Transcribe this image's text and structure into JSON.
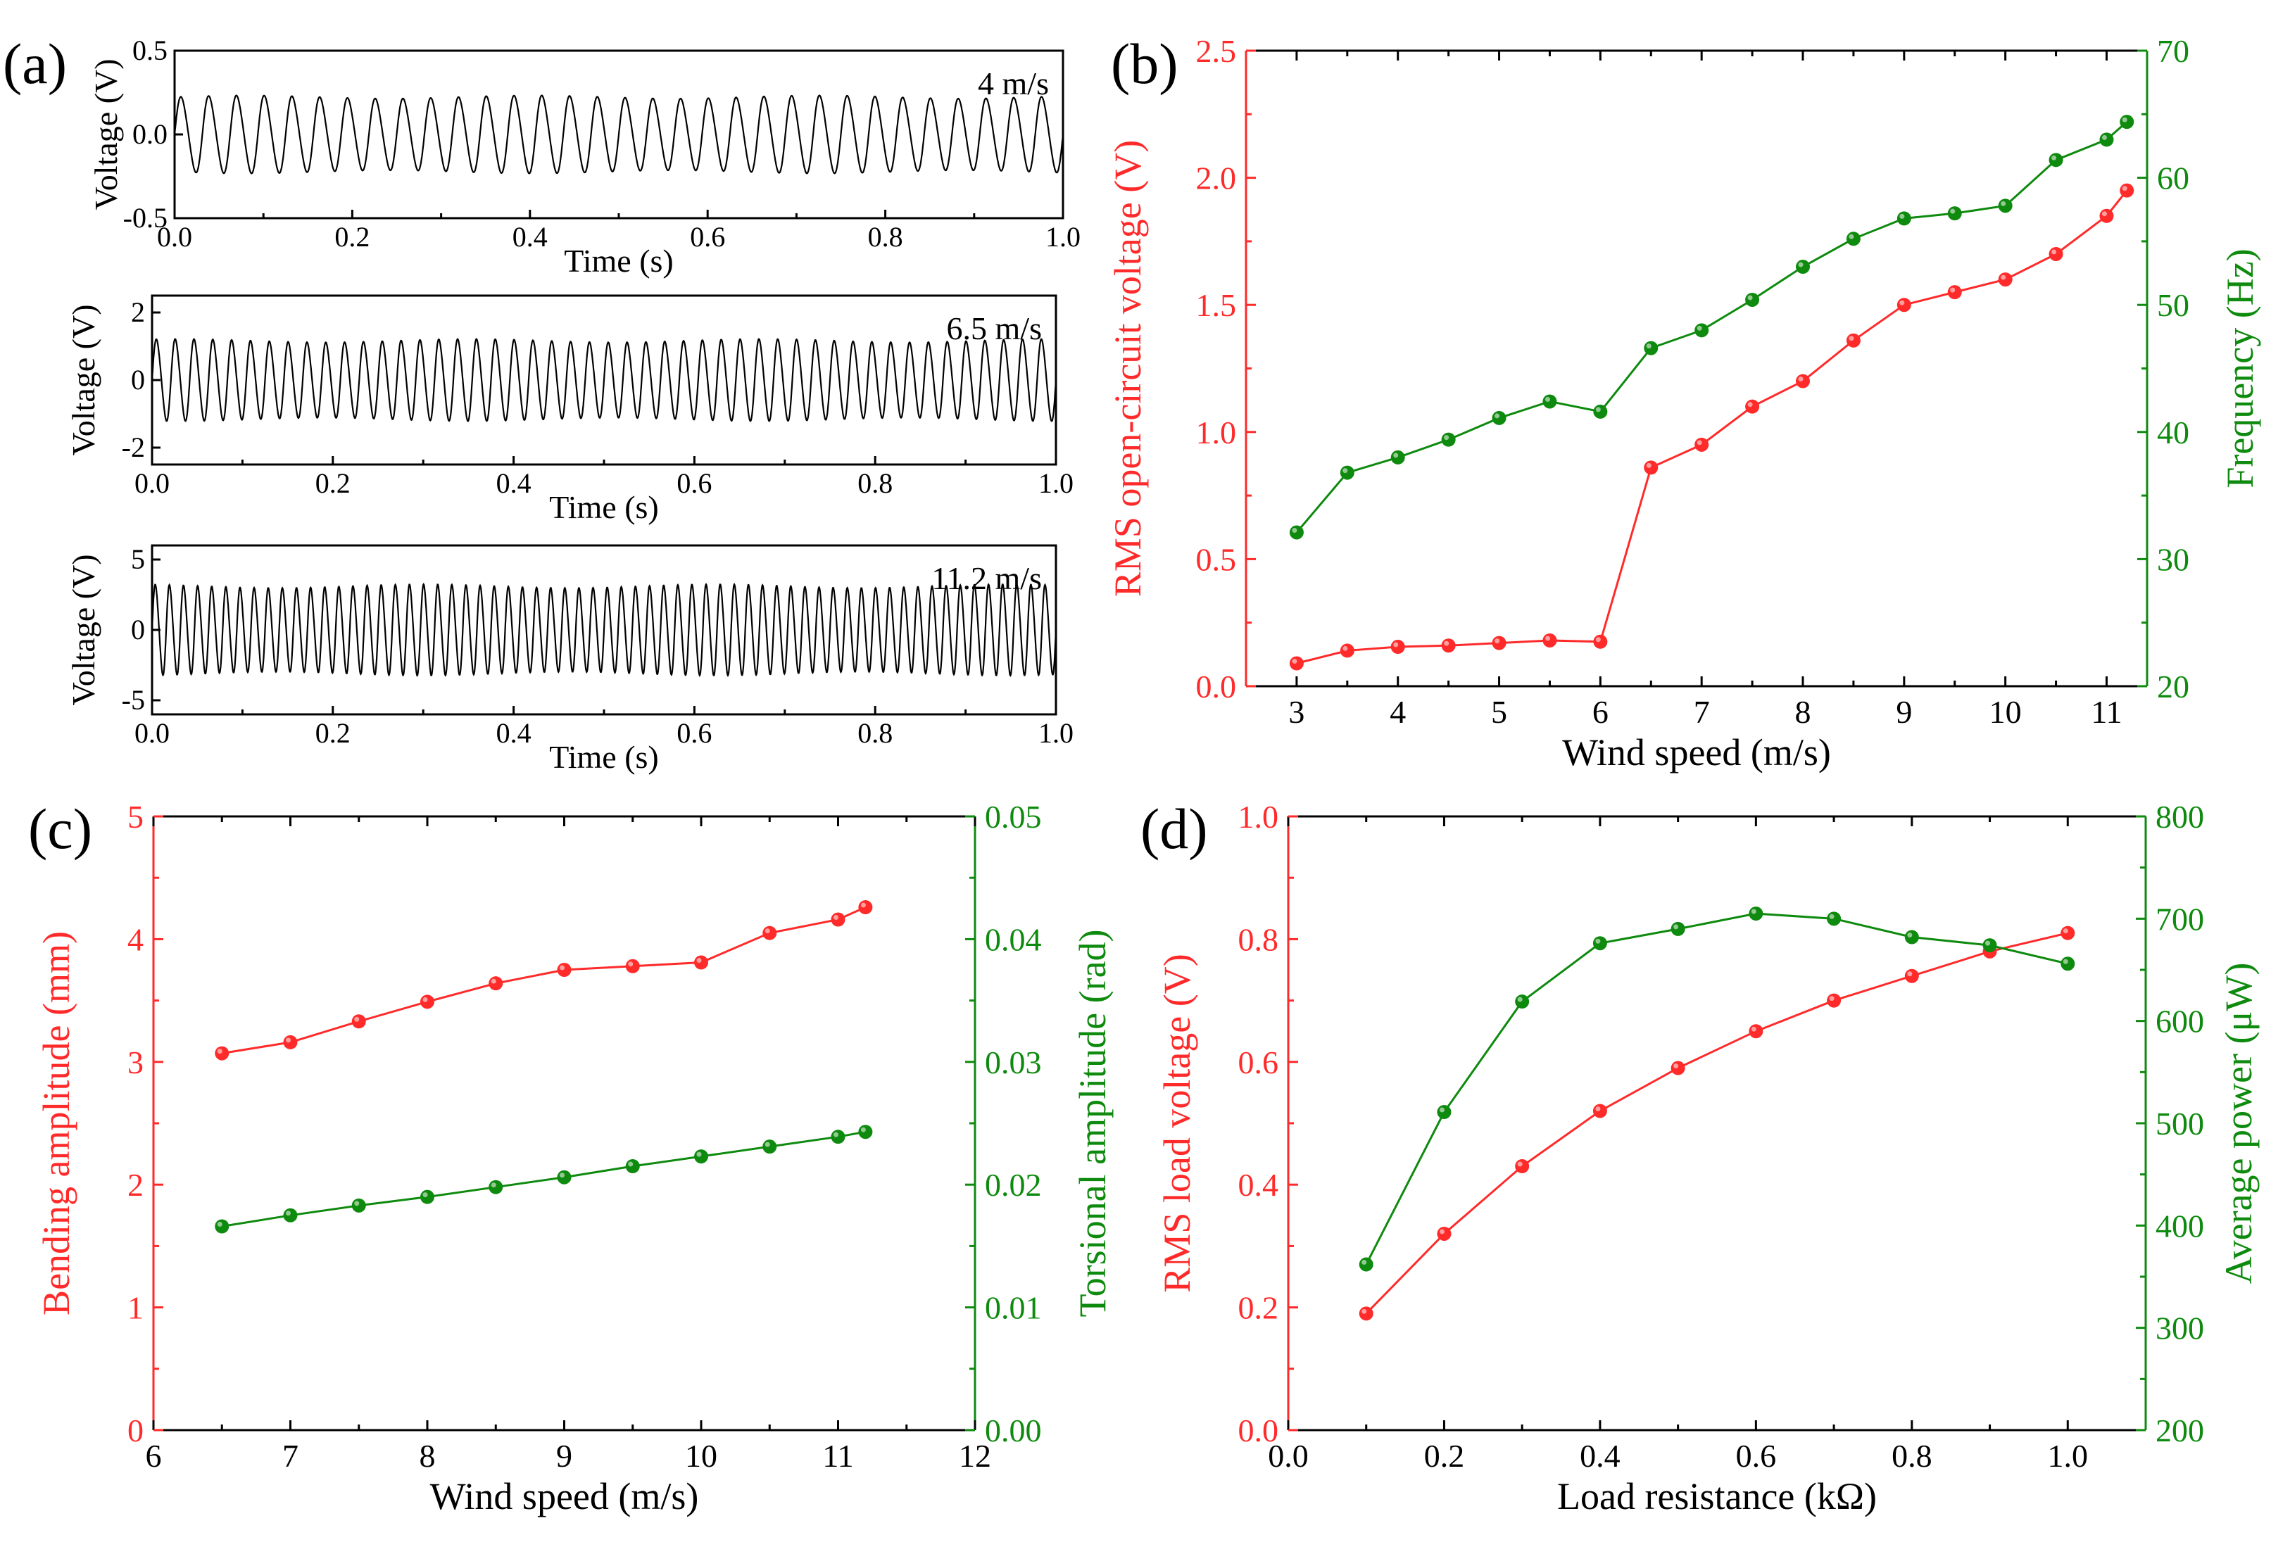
{
  "figure": {
    "panel_labels": [
      "(a)",
      "(b)",
      "(c)",
      "(d)"
    ]
  },
  "colors": {
    "red": "#ff2a2a",
    "green": "#0e8a0e",
    "black": "#000000"
  },
  "chart_data": [
    {
      "panel": "(a)",
      "type": "line",
      "xlabel": "Time (s)",
      "ylabel": "Voltage (V)",
      "xlim": [
        0.0,
        1.0
      ],
      "xticks": [
        "0.0",
        "0.2",
        "0.4",
        "0.6",
        "0.8",
        "1.0"
      ],
      "subplots": [
        {
          "annotation": "4 m/s",
          "ylim": [
            -0.5,
            0.5
          ],
          "yticks": [
            "-0.5",
            "0.0",
            "0.5"
          ],
          "amplitude": 0.23,
          "cycles": 32
        },
        {
          "annotation": "6.5 m/s",
          "ylim": [
            -2.5,
            2.5
          ],
          "yticks": [
            "-2",
            "0",
            "2"
          ],
          "amplitude": 1.2,
          "cycles": 48
        },
        {
          "annotation": "11.2 m/s",
          "ylim": [
            -6,
            6
          ],
          "yticks": [
            "-5",
            "0",
            "5"
          ],
          "amplitude": 3.2,
          "cycles": 64
        }
      ]
    },
    {
      "panel": "(b)",
      "type": "line",
      "xlabel": "Wind speed (m/s)",
      "ylabel_left": "RMS open-circuit voltage (V)",
      "ylabel_right": "Frequency (Hz)",
      "xlim": [
        2.5,
        11.4
      ],
      "xticks": [
        "3",
        "4",
        "5",
        "6",
        "7",
        "8",
        "9",
        "10",
        "11"
      ],
      "ylim_left": [
        0.0,
        2.5
      ],
      "yticks_left": [
        "0.0",
        "0.5",
        "1.0",
        "1.5",
        "2.0",
        "2.5"
      ],
      "ylim_right": [
        20,
        70
      ],
      "yticks_right": [
        "20",
        "30",
        "40",
        "50",
        "60",
        "70"
      ],
      "series": [
        {
          "name": "RMS open-circuit voltage",
          "axis": "left",
          "color": "#ff2a2a",
          "x": [
            3,
            3.5,
            4,
            4.5,
            5,
            5.5,
            6,
            6.5,
            7,
            7.5,
            8,
            8.5,
            9,
            9.5,
            10,
            10.5,
            11,
            11.2
          ],
          "values": [
            0.09,
            0.14,
            0.155,
            0.16,
            0.17,
            0.18,
            0.175,
            0.86,
            0.95,
            1.1,
            1.2,
            1.36,
            1.5,
            1.55,
            1.6,
            1.7,
            1.85,
            1.95
          ]
        },
        {
          "name": "Frequency",
          "axis": "right",
          "color": "#0e8a0e",
          "x": [
            3,
            3.5,
            4,
            4.5,
            5,
            5.5,
            6,
            6.5,
            7,
            7.5,
            8,
            8.5,
            9,
            9.5,
            10,
            10.5,
            11,
            11.2
          ],
          "values": [
            32.1,
            36.8,
            38.0,
            39.4,
            41.1,
            42.4,
            41.6,
            46.6,
            48.0,
            50.4,
            53.0,
            55.2,
            56.8,
            57.2,
            57.8,
            61.4,
            63.0,
            64.4
          ]
        }
      ]
    },
    {
      "panel": "(c)",
      "type": "line",
      "xlabel": "Wind speed (m/s)",
      "ylabel_left": "Bending amplitude (mm)",
      "ylabel_right": "Torsional amplitude (rad)",
      "xlim": [
        6,
        12
      ],
      "xticks": [
        "6",
        "7",
        "8",
        "9",
        "10",
        "11",
        "12"
      ],
      "ylim_left": [
        0,
        5
      ],
      "yticks_left": [
        "0",
        "1",
        "2",
        "3",
        "4",
        "5"
      ],
      "ylim_right": [
        0.0,
        0.05
      ],
      "yticks_right": [
        "0.00",
        "0.01",
        "0.02",
        "0.03",
        "0.04",
        "0.05"
      ],
      "series": [
        {
          "name": "Bending amplitude",
          "axis": "left",
          "color": "#ff2a2a",
          "x": [
            6.5,
            7,
            7.5,
            8,
            8.5,
            9,
            9.5,
            10,
            10.5,
            11,
            11.2
          ],
          "values": [
            3.07,
            3.16,
            3.33,
            3.49,
            3.64,
            3.75,
            3.78,
            3.81,
            4.05,
            4.16,
            4.26
          ]
        },
        {
          "name": "Torsional amplitude",
          "axis": "right",
          "color": "#0e8a0e",
          "x": [
            6.5,
            7,
            7.5,
            8,
            8.5,
            9,
            9.5,
            10,
            10.5,
            11,
            11.2
          ],
          "values": [
            0.0166,
            0.0175,
            0.0183,
            0.019,
            0.0198,
            0.0206,
            0.0215,
            0.0223,
            0.0231,
            0.0239,
            0.0243
          ]
        }
      ]
    },
    {
      "panel": "(d)",
      "type": "line",
      "xlabel": "Load resistance (kΩ)",
      "ylabel_left": "RMS load voltage (V)",
      "ylabel_right": "Average power (μW)",
      "xlim": [
        0.0,
        1.1
      ],
      "xticks": [
        "0.0",
        "0.2",
        "0.4",
        "0.6",
        "0.8",
        "1.0"
      ],
      "ylim_left": [
        0.0,
        1.0
      ],
      "yticks_left": [
        "0.0",
        "0.2",
        "0.4",
        "0.6",
        "0.8",
        "1.0"
      ],
      "ylim_right": [
        200,
        800
      ],
      "yticks_right": [
        "200",
        "300",
        "400",
        "500",
        "600",
        "700",
        "800"
      ],
      "series": [
        {
          "name": "RMS load voltage",
          "axis": "left",
          "color": "#ff2a2a",
          "x": [
            0.1,
            0.2,
            0.3,
            0.4,
            0.5,
            0.6,
            0.7,
            0.8,
            0.9,
            1.0
          ],
          "values": [
            0.19,
            0.32,
            0.43,
            0.52,
            0.59,
            0.65,
            0.7,
            0.74,
            0.78,
            0.81
          ]
        },
        {
          "name": "Average power",
          "axis": "right",
          "color": "#0e8a0e",
          "x": [
            0.1,
            0.2,
            0.3,
            0.4,
            0.5,
            0.6,
            0.7,
            0.8,
            0.9,
            1.0
          ],
          "values": [
            362,
            511,
            619,
            676,
            690,
            705,
            700,
            682,
            674,
            656
          ]
        }
      ]
    }
  ]
}
